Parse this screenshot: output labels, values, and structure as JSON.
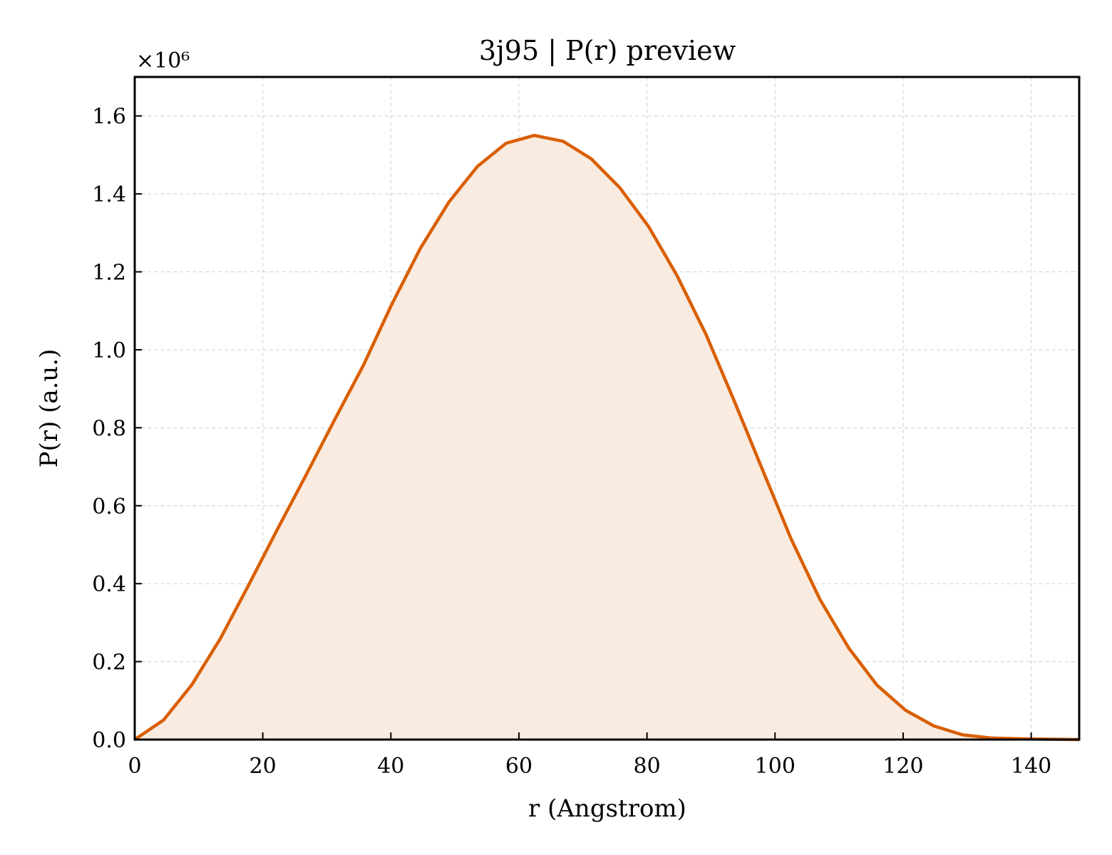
{
  "chart_data": {
    "type": "area",
    "title": "3j95 | P(r) preview",
    "xlabel": "r (Angstrom)",
    "ylabel": "P(r) (a.u.)",
    "y_multiplier_label": "×10⁶",
    "xlim": [
      0,
      147.5
    ],
    "ylim": [
      0,
      1.7
    ],
    "xticks": [
      "0",
      "20",
      "40",
      "60",
      "80",
      "100",
      "120",
      "140"
    ],
    "xtick_values": [
      0,
      20,
      40,
      60,
      80,
      100,
      120,
      140
    ],
    "yticks": [
      "0.0",
      "0.2",
      "0.4",
      "0.6",
      "0.8",
      "1.0",
      "1.2",
      "1.4",
      "1.6"
    ],
    "ytick_values": [
      0,
      0.2,
      0.4,
      0.6,
      0.8,
      1.0,
      1.2,
      1.4,
      1.6
    ],
    "grid": true,
    "line_color": "#d95f02",
    "fill_color": "#f9ebe0",
    "x": [
      0,
      4.5,
      8.9,
      13.4,
      17.9,
      22.3,
      26.8,
      31.2,
      35.7,
      40.1,
      44.6,
      49.1,
      53.5,
      58.0,
      62.4,
      66.9,
      71.3,
      75.8,
      80.3,
      84.7,
      89.2,
      93.6,
      98.1,
      102.5,
      107.0,
      111.5,
      115.9,
      120.4,
      124.8,
      129.3,
      133.8,
      138.2,
      142.7,
      147.5
    ],
    "y": [
      0.0,
      0.05,
      0.14,
      0.26,
      0.4,
      0.54,
      0.68,
      0.82,
      0.96,
      1.115,
      1.26,
      1.38,
      1.47,
      1.53,
      1.55,
      1.535,
      1.49,
      1.415,
      1.315,
      1.19,
      1.04,
      0.87,
      0.69,
      0.515,
      0.36,
      0.235,
      0.14,
      0.075,
      0.035,
      0.012,
      0.004,
      0.002,
      0.001,
      0.0
    ]
  }
}
